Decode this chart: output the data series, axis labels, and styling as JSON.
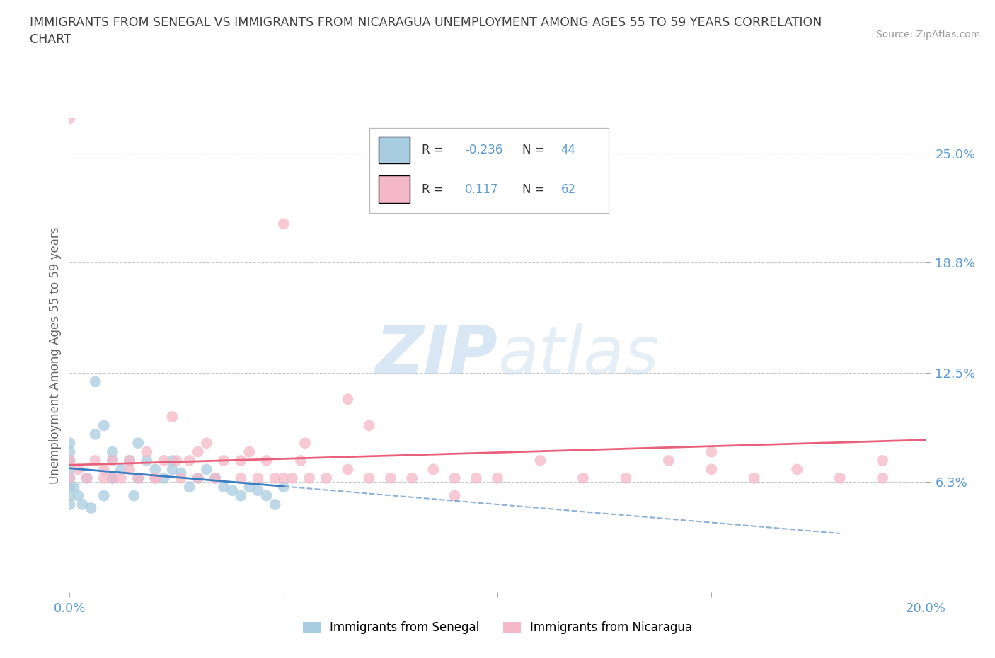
{
  "title": "IMMIGRANTS FROM SENEGAL VS IMMIGRANTS FROM NICARAGUA UNEMPLOYMENT AMONG AGES 55 TO 59 YEARS CORRELATION\nCHART",
  "source": "Source: ZipAtlas.com",
  "ylabel": "Unemployment Among Ages 55 to 59 years",
  "xlim": [
    0.0,
    0.2
  ],
  "ylim": [
    0.0,
    0.27
  ],
  "ytick_positions": [
    0.063,
    0.125,
    0.188,
    0.25
  ],
  "yticklabels": [
    "6.3%",
    "12.5%",
    "18.8%",
    "25.0%"
  ],
  "xtick_positions": [
    0.0,
    0.05,
    0.1,
    0.15,
    0.2
  ],
  "xticklabels": [
    "0.0%",
    "",
    "",
    "",
    "20.0%"
  ],
  "senegal_color": "#a8cce0",
  "nicaragua_color": "#f4b8c8",
  "senegal_R": -0.236,
  "senegal_N": 44,
  "nicaragua_R": 0.117,
  "nicaragua_N": 62,
  "senegal_line_color": "#3a7dc0",
  "nicaragua_line_color": "#e8607a",
  "watermark_zip": "ZIP",
  "watermark_atlas": "atlas",
  "grid_color": "#c8c8c8",
  "background_color": "#ffffff",
  "tick_color": "#5b9bd5",
  "title_color": "#404040",
  "axis_label_color": "#666666",
  "legend_r_color": "#333333",
  "legend_val_color": "#5b9bd5",
  "senegal_scatter_x": [
    0.0,
    0.0,
    0.0,
    0.0,
    0.0,
    0.0,
    0.0,
    0.0,
    0.004,
    0.006,
    0.008,
    0.01,
    0.01,
    0.01,
    0.012,
    0.014,
    0.016,
    0.016,
    0.018,
    0.02,
    0.022,
    0.024,
    0.024,
    0.026,
    0.028,
    0.03,
    0.032,
    0.034,
    0.036,
    0.038,
    0.04,
    0.042,
    0.044,
    0.046,
    0.048,
    0.05,
    0.006,
    0.008,
    0.01,
    0.015,
    0.005,
    0.003,
    0.002,
    0.001
  ],
  "senegal_scatter_y": [
    0.06,
    0.065,
    0.07,
    0.075,
    0.055,
    0.08,
    0.085,
    0.05,
    0.065,
    0.09,
    0.095,
    0.075,
    0.065,
    0.08,
    0.07,
    0.075,
    0.065,
    0.085,
    0.075,
    0.07,
    0.065,
    0.07,
    0.075,
    0.068,
    0.06,
    0.065,
    0.07,
    0.065,
    0.06,
    0.058,
    0.055,
    0.06,
    0.058,
    0.055,
    0.05,
    0.06,
    0.12,
    0.055,
    0.065,
    0.055,
    0.048,
    0.05,
    0.055,
    0.06
  ],
  "nicaragua_scatter_x": [
    0.0,
    0.0,
    0.0,
    0.002,
    0.004,
    0.006,
    0.008,
    0.008,
    0.01,
    0.01,
    0.012,
    0.014,
    0.014,
    0.016,
    0.018,
    0.02,
    0.022,
    0.024,
    0.026,
    0.028,
    0.03,
    0.03,
    0.032,
    0.034,
    0.036,
    0.04,
    0.042,
    0.044,
    0.046,
    0.048,
    0.05,
    0.052,
    0.054,
    0.056,
    0.06,
    0.065,
    0.07,
    0.075,
    0.08,
    0.085,
    0.09,
    0.095,
    0.1,
    0.11,
    0.12,
    0.13,
    0.14,
    0.15,
    0.16,
    0.17,
    0.18,
    0.19,
    0.19,
    0.15,
    0.07,
    0.05,
    0.09,
    0.055,
    0.04,
    0.065,
    0.025,
    0.02
  ],
  "nicaragua_scatter_y": [
    0.065,
    0.075,
    0.27,
    0.07,
    0.065,
    0.075,
    0.065,
    0.07,
    0.065,
    0.075,
    0.065,
    0.07,
    0.075,
    0.065,
    0.08,
    0.065,
    0.075,
    0.1,
    0.065,
    0.075,
    0.08,
    0.065,
    0.085,
    0.065,
    0.075,
    0.065,
    0.08,
    0.065,
    0.075,
    0.065,
    0.21,
    0.065,
    0.075,
    0.065,
    0.065,
    0.07,
    0.065,
    0.065,
    0.065,
    0.07,
    0.065,
    0.065,
    0.065,
    0.075,
    0.065,
    0.065,
    0.075,
    0.07,
    0.065,
    0.07,
    0.065,
    0.075,
    0.065,
    0.08,
    0.095,
    0.065,
    0.055,
    0.085,
    0.075,
    0.11,
    0.075,
    0.065
  ]
}
